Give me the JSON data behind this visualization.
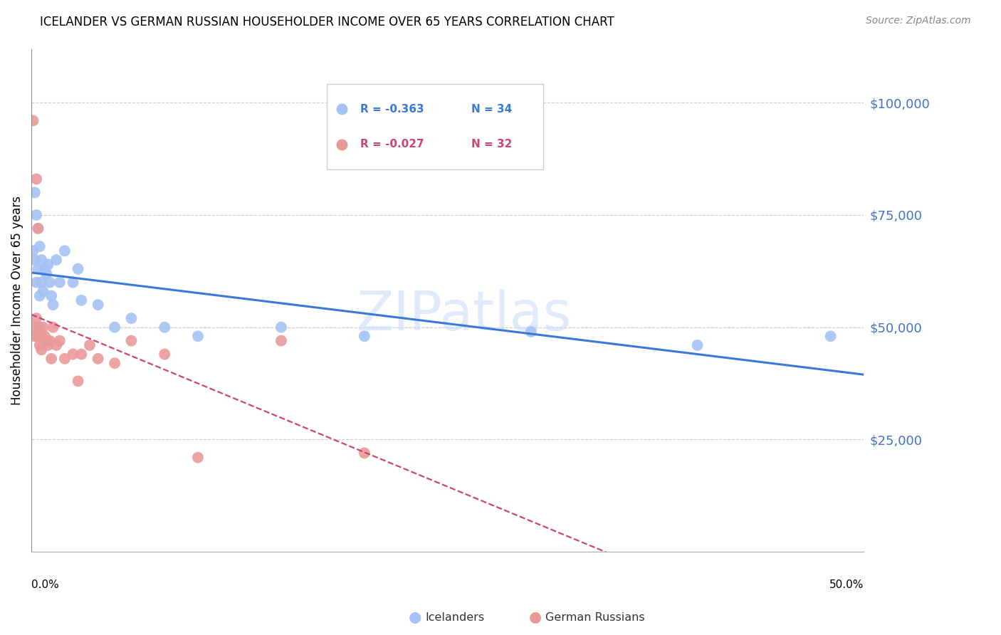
{
  "title": "ICELANDER VS GERMAN RUSSIAN HOUSEHOLDER INCOME OVER 65 YEARS CORRELATION CHART",
  "source": "Source: ZipAtlas.com",
  "ylabel": "Householder Income Over 65 years",
  "watermark": "ZIPatlas",
  "legend_blue_r": "-0.363",
  "legend_blue_n": "34",
  "legend_pink_r": "-0.027",
  "legend_pink_n": "32",
  "legend_blue_label": "Icelanders",
  "legend_pink_label": "German Russians",
  "blue_color": "#a4c2f4",
  "pink_color": "#ea9999",
  "line_blue_color": "#3c78d8",
  "line_pink_color": "#cc4477",
  "ytick_color": "#4472c4",
  "ytick_labels": [
    "$25,000",
    "$50,000",
    "$75,000",
    "$100,000"
  ],
  "ytick_values": [
    25000,
    50000,
    75000,
    100000
  ],
  "ylim": [
    0,
    112000
  ],
  "xlim": [
    0.0,
    0.5
  ],
  "blue_x": [
    0.001,
    0.002,
    0.002,
    0.003,
    0.003,
    0.004,
    0.004,
    0.005,
    0.005,
    0.006,
    0.006,
    0.007,
    0.008,
    0.009,
    0.01,
    0.011,
    0.012,
    0.013,
    0.015,
    0.017,
    0.02,
    0.025,
    0.028,
    0.03,
    0.04,
    0.05,
    0.06,
    0.08,
    0.1,
    0.15,
    0.2,
    0.3,
    0.4,
    0.48
  ],
  "blue_y": [
    67000,
    80000,
    65000,
    60000,
    75000,
    72000,
    63000,
    68000,
    57000,
    65000,
    60000,
    58000,
    63000,
    62000,
    64000,
    60000,
    57000,
    55000,
    65000,
    60000,
    67000,
    60000,
    63000,
    56000,
    55000,
    50000,
    52000,
    50000,
    48000,
    50000,
    48000,
    49000,
    46000,
    48000
  ],
  "pink_x": [
    0.001,
    0.002,
    0.002,
    0.003,
    0.003,
    0.004,
    0.004,
    0.005,
    0.005,
    0.006,
    0.006,
    0.007,
    0.008,
    0.009,
    0.01,
    0.011,
    0.012,
    0.013,
    0.015,
    0.017,
    0.02,
    0.025,
    0.028,
    0.03,
    0.035,
    0.04,
    0.05,
    0.06,
    0.08,
    0.1,
    0.15,
    0.2
  ],
  "pink_y": [
    96000,
    50000,
    48000,
    83000,
    52000,
    72000,
    48000,
    50000,
    46000,
    48000,
    45000,
    50000,
    48000,
    47000,
    46000,
    47000,
    43000,
    50000,
    46000,
    47000,
    43000,
    44000,
    38000,
    44000,
    46000,
    43000,
    42000,
    47000,
    44000,
    21000,
    47000,
    22000
  ]
}
